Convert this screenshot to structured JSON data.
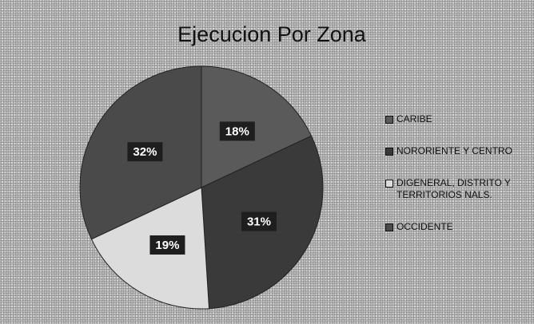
{
  "chart_data": {
    "type": "pie",
    "title": "Ejecucion Por Zona",
    "categories": [
      "CARIBE",
      "NORORIENTE Y CENTRO",
      "DIGENERAL, DISTRITO Y TERRITORIOS NALS.",
      "OCCIDENTE"
    ],
    "values": [
      18,
      31,
      19,
      32
    ],
    "value_labels": [
      "18%",
      "31%",
      "19%",
      "32%"
    ],
    "colors": [
      "#5a5a5a",
      "#3a3a3a",
      "#dcdcdc",
      "#4a4a4a"
    ],
    "legend": "right"
  }
}
